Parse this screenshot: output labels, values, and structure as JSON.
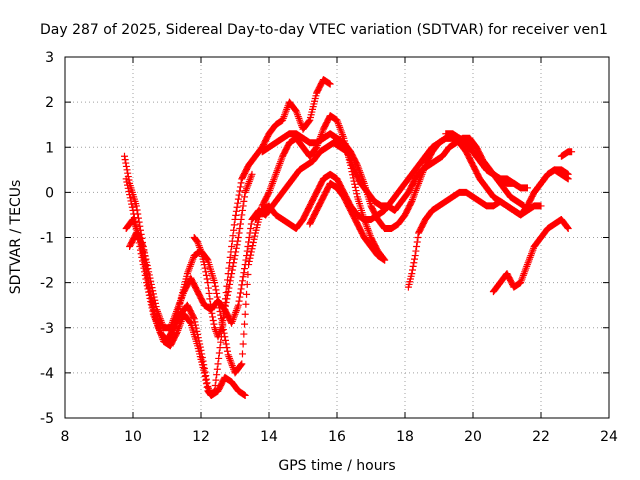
{
  "chart_data": {
    "type": "scatter",
    "title": "Day 287 of 2025, Sidereal Day-to-day VTEC variation (SDTVAR) for receiver ven1",
    "xlabel": "GPS time / hours",
    "ylabel": "SDTVAR / TECUs",
    "xlim": [
      8,
      24
    ],
    "ylim": [
      -5,
      3
    ],
    "xticks": [
      8,
      10,
      12,
      14,
      16,
      18,
      20,
      22,
      24
    ],
    "yticks": [
      -5,
      -4,
      -3,
      -2,
      -1,
      0,
      1,
      2,
      3
    ],
    "grid": true,
    "marker": "+",
    "marker_color": "#ff0000",
    "series": [
      {
        "x": [
          9.75,
          9.9,
          10.1,
          10.3,
          10.5,
          10.7,
          10.9,
          11.1,
          11.3,
          11.5,
          11.7,
          11.9,
          12.1,
          12.2,
          12.3,
          12.5,
          12.7,
          12.9,
          13.1,
          13.3
        ],
        "y": [
          0.8,
          0.2,
          -0.3,
          -1.2,
          -2.2,
          -2.9,
          -3.3,
          -3.4,
          -3.1,
          -2.7,
          -2.9,
          -3.4,
          -4.0,
          -4.4,
          -4.5,
          -4.4,
          -4.1,
          -4.2,
          -4.4,
          -4.5
        ]
      },
      {
        "x": [
          9.8,
          10.0,
          10.2,
          10.4,
          10.6,
          10.8,
          11.0,
          11.2,
          11.4,
          11.6,
          11.8,
          12.0,
          12.1,
          12.2,
          12.3,
          12.4,
          12.6,
          12.8,
          13.0,
          13.2,
          13.4,
          13.6,
          13.8,
          14.0,
          14.2,
          14.4,
          14.6,
          14.8,
          15.0,
          15.2,
          15.4,
          15.6,
          15.8
        ],
        "y": [
          0.3,
          -0.4,
          -1.2,
          -2.0,
          -2.7,
          -3.1,
          -3.3,
          -3.0,
          -2.7,
          -2.5,
          -2.8,
          -3.5,
          -3.9,
          -4.3,
          -4.5,
          -4.4,
          -3.2,
          -1.8,
          -0.6,
          0.3,
          0.6,
          0.8,
          1.0,
          1.3,
          1.5,
          1.6,
          2.0,
          1.8,
          1.4,
          1.6,
          2.2,
          2.5,
          2.4
        ]
      },
      {
        "x": [
          9.8,
          10.0,
          10.2,
          10.4,
          10.6,
          10.8,
          11.0,
          11.2,
          11.4,
          11.6,
          11.8,
          12.0,
          12.2,
          12.4,
          12.6,
          12.8,
          13.0,
          13.2,
          13.4,
          13.6,
          13.8,
          14.0,
          14.2,
          14.4,
          14.6,
          14.8,
          15.0,
          15.2,
          15.4,
          15.6,
          15.8,
          16.0,
          16.2,
          16.4,
          16.6,
          16.8,
          17.0,
          17.2,
          17.4
        ],
        "y": [
          -0.8,
          -0.6,
          -1.0,
          -1.8,
          -2.6,
          -3.1,
          -3.3,
          -3.0,
          -2.4,
          -1.8,
          -1.4,
          -1.3,
          -1.5,
          -2.0,
          -2.8,
          -3.6,
          -4.0,
          -3.8,
          -1.6,
          -0.9,
          -0.3,
          0.0,
          0.4,
          0.8,
          1.1,
          1.2,
          1.0,
          0.8,
          1.0,
          1.4,
          1.7,
          1.6,
          1.2,
          0.6,
          -0.1,
          -0.6,
          -1.0,
          -1.3,
          -1.5
        ]
      },
      {
        "x": [
          9.9,
          10.1,
          10.3,
          10.5,
          10.7,
          10.9,
          11.1,
          11.3,
          11.5,
          11.7,
          11.9,
          12.1,
          12.3,
          12.5,
          12.7,
          12.9,
          13.1,
          13.3,
          13.5,
          13.7,
          13.9,
          14.1,
          14.3,
          14.5,
          14.7,
          14.9,
          15.1,
          15.3,
          15.5,
          15.7,
          15.9,
          16.1,
          16.3,
          16.5,
          16.7,
          16.9,
          17.1,
          17.3,
          17.5,
          17.7,
          17.9,
          18.1,
          18.3,
          18.5,
          18.7,
          18.9,
          19.1,
          19.3,
          19.5,
          19.7,
          19.9,
          20.1,
          20.3,
          20.5,
          20.7,
          20.9,
          21.1,
          21.3,
          21.5
        ],
        "y": [
          -1.2,
          -0.9,
          -1.2,
          -1.9,
          -2.6,
          -3.0,
          -3.0,
          -2.6,
          -2.2,
          -1.9,
          -2.2,
          -2.5,
          -2.6,
          -2.4,
          -2.6,
          -2.9,
          -2.5,
          -1.6,
          -0.6,
          -0.4,
          -0.5,
          -0.3,
          -0.1,
          0.1,
          0.3,
          0.5,
          0.6,
          0.7,
          0.9,
          1.0,
          1.1,
          1.0,
          0.9,
          0.5,
          0.2,
          0.0,
          -0.2,
          -0.3,
          -0.3,
          -0.4,
          -0.2,
          0.0,
          0.3,
          0.5,
          0.6,
          0.7,
          0.8,
          1.0,
          1.1,
          1.2,
          1.2,
          1.0,
          0.7,
          0.5,
          0.3,
          0.1,
          -0.1,
          -0.2,
          -0.3
        ]
      },
      {
        "x": [
          13.8,
          14.0,
          14.2,
          14.4,
          14.6,
          14.8,
          15.0,
          15.2,
          15.4,
          15.6,
          15.8,
          16.0,
          16.2,
          16.4,
          16.6,
          16.8,
          17.0,
          17.2,
          17.4,
          17.6,
          17.8,
          18.0,
          18.2,
          18.4,
          18.6,
          18.8,
          19.0,
          19.2,
          19.4,
          19.6,
          19.8,
          20.0,
          20.2,
          20.4,
          20.6,
          20.8,
          21.0,
          21.2,
          21.4,
          21.6,
          21.8,
          22.0,
          22.2,
          22.4,
          22.6,
          22.8
        ],
        "y": [
          0.9,
          1.0,
          1.1,
          1.2,
          1.3,
          1.3,
          1.2,
          1.1,
          1.1,
          1.2,
          1.3,
          1.2,
          1.1,
          0.9,
          0.6,
          0.2,
          -0.3,
          -0.6,
          -0.8,
          -0.8,
          -0.7,
          -0.5,
          -0.2,
          0.2,
          0.6,
          0.9,
          1.1,
          1.2,
          1.2,
          1.1,
          0.9,
          0.6,
          0.3,
          0.1,
          -0.1,
          -0.2,
          -0.3,
          -0.4,
          -0.5,
          -0.3,
          0.0,
          0.2,
          0.4,
          0.5,
          0.5,
          0.4
        ]
      },
      {
        "x": [
          13.6,
          13.8,
          14.0,
          14.2,
          14.4,
          14.6,
          14.8,
          15.0,
          15.2,
          15.4,
          15.6,
          15.8,
          16.0,
          16.2,
          16.4,
          16.6,
          16.8,
          17.0,
          17.2,
          17.4,
          17.6,
          17.8,
          18.0,
          18.2,
          18.4,
          18.6,
          18.8,
          19.0,
          19.2,
          19.4,
          19.6,
          19.8,
          20.0,
          20.2,
          20.4,
          20.6,
          20.8,
          21.0,
          21.2,
          21.4
        ],
        "y": [
          -0.6,
          -0.4,
          -0.3,
          -0.5,
          -0.6,
          -0.7,
          -0.8,
          -0.6,
          -0.3,
          0.0,
          0.3,
          0.4,
          0.3,
          0.0,
          -0.3,
          -0.5,
          -0.6,
          -0.6,
          -0.5,
          -0.4,
          -0.2,
          0.0,
          0.2,
          0.4,
          0.6,
          0.8,
          1.0,
          1.1,
          1.2,
          1.2,
          1.2,
          1.1,
          0.9,
          0.7,
          0.5,
          0.4,
          0.3,
          0.3,
          0.2,
          0.1
        ]
      },
      {
        "x": [
          15.2,
          15.4,
          15.6,
          15.8,
          16.0,
          16.2,
          16.4,
          16.6,
          16.8,
          17.0,
          17.2,
          17.4
        ],
        "y": [
          -0.7,
          -0.4,
          -0.1,
          0.2,
          0.1,
          -0.1,
          -0.4,
          -0.7,
          -1.0,
          -1.2,
          -1.4,
          -1.5
        ]
      },
      {
        "x": [
          18.1,
          18.2,
          18.3,
          18.4,
          18.6,
          18.8,
          19.0,
          19.2,
          19.4,
          19.6,
          19.8,
          20.0,
          20.2,
          20.4,
          20.6,
          20.8,
          21.0,
          21.2,
          21.4,
          21.6,
          21.8,
          22.0
        ],
        "y": [
          -2.1,
          -1.8,
          -1.4,
          -0.9,
          -0.6,
          -0.4,
          -0.3,
          -0.2,
          -0.1,
          0.0,
          0.0,
          -0.1,
          -0.2,
          -0.3,
          -0.3,
          -0.2,
          -0.3,
          -0.4,
          -0.5,
          -0.4,
          -0.3,
          -0.3
        ]
      },
      {
        "x": [
          20.6,
          20.8,
          21.0,
          21.2,
          21.4,
          21.6,
          21.8,
          22.0,
          22.2,
          22.4,
          22.6,
          22.8
        ],
        "y": [
          -2.2,
          -2.0,
          -1.8,
          -2.1,
          -2.0,
          -1.6,
          -1.2,
          -1.0,
          -0.8,
          -0.7,
          -0.6,
          -0.8
        ]
      },
      {
        "x": [
          21.8,
          22.0,
          22.2,
          22.4,
          22.6,
          22.8
        ],
        "y": [
          0.0,
          0.2,
          0.4,
          0.5,
          0.4,
          0.3
        ]
      },
      {
        "x": [
          22.6,
          22.8,
          22.9
        ],
        "y": [
          0.8,
          0.9,
          0.9
        ]
      },
      {
        "x": [
          19.2,
          19.4,
          19.6,
          19.8,
          20.0,
          20.2,
          20.4,
          20.6,
          20.8,
          21.0,
          21.2,
          21.4,
          21.6
        ],
        "y": [
          1.3,
          1.3,
          1.2,
          1.1,
          0.9,
          0.7,
          0.5,
          0.4,
          0.3,
          0.2,
          0.2,
          0.1,
          0.1
        ]
      },
      {
        "x": [
          11.8,
          11.9,
          12.0,
          12.1,
          12.2,
          12.3,
          12.4,
          12.5,
          12.6,
          12.7,
          12.8,
          12.9,
          13.0,
          13.1,
          13.2,
          13.3,
          13.4,
          13.5
        ],
        "y": [
          -1.0,
          -1.1,
          -1.3,
          -1.6,
          -2.0,
          -2.6,
          -3.0,
          -3.2,
          -3.0,
          -2.6,
          -2.2,
          -1.8,
          -1.4,
          -1.0,
          -0.5,
          0.0,
          0.2,
          0.4
        ]
      }
    ]
  }
}
